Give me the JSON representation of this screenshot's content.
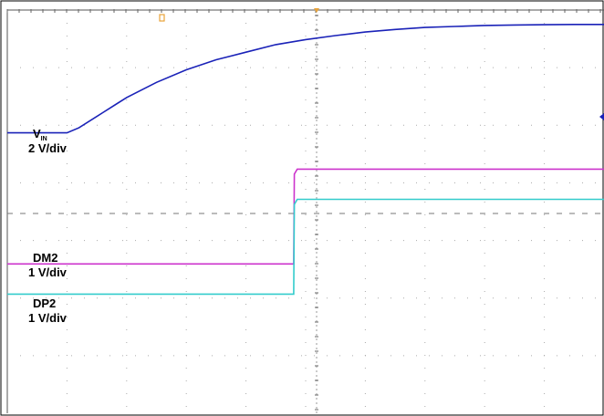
{
  "chart_data": {
    "type": "line",
    "xlim": [
      0,
      10
    ],
    "ylim": [
      -4,
      4
    ],
    "grid": true,
    "series": [
      {
        "name": "VIN",
        "color": "#1a22b8",
        "x": [
          0,
          1.0,
          1.2,
          1.6,
          2.0,
          2.5,
          3.0,
          3.5,
          4.0,
          4.5,
          5.0,
          5.5,
          6.0,
          6.5,
          7.0,
          7.5,
          8.0,
          8.5,
          9.0,
          9.5,
          10.0
        ],
        "y": [
          1.6,
          1.6,
          1.7,
          2.0,
          2.3,
          2.6,
          2.85,
          3.05,
          3.2,
          3.35,
          3.45,
          3.53,
          3.6,
          3.65,
          3.69,
          3.71,
          3.73,
          3.74,
          3.745,
          3.75,
          3.75
        ]
      },
      {
        "name": "DM2",
        "color": "#cc33cc",
        "x": [
          0,
          4.8,
          4.81,
          4.86,
          10.0
        ],
        "y": [
          -1.0,
          -1.0,
          0.78,
          0.88,
          0.88
        ]
      },
      {
        "name": "DP2",
        "color": "#33cccc",
        "x": [
          0,
          4.8,
          4.81,
          4.86,
          10.0
        ],
        "y": [
          -1.6,
          -1.6,
          0.18,
          0.28,
          0.28
        ]
      }
    ],
    "annotations": {
      "vin_name": "V",
      "vin_sub": "IN",
      "vin_scale": "2 V/div",
      "dm2_name": "DM2",
      "dm2_scale": "1 V/div",
      "dp2_name": "DP2",
      "dp2_scale": "1 V/div"
    },
    "trigger_marker_color": "#e8a33a",
    "ref_marker_color": "#1a22b8"
  }
}
